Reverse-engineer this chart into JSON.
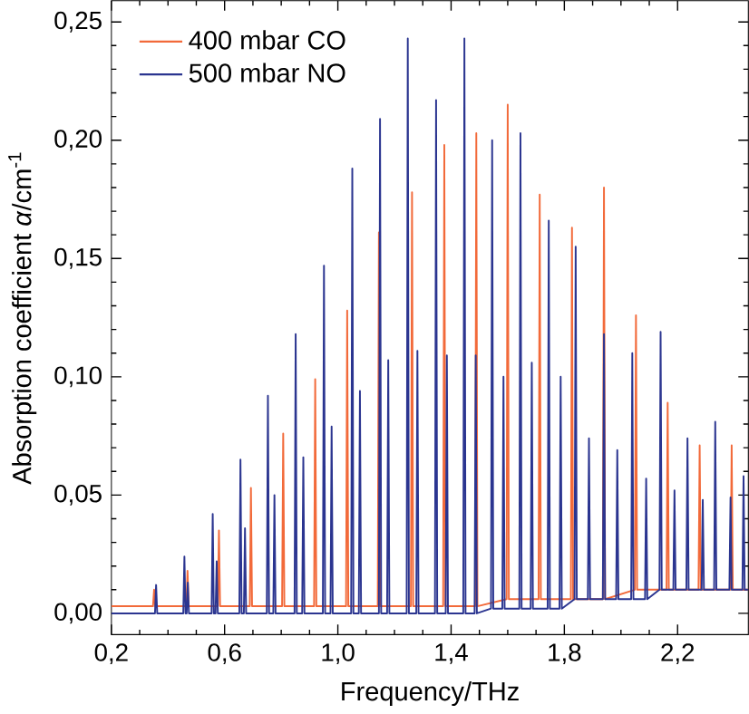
{
  "chart_data": {
    "type": "line",
    "xlabel": "Frequency/THz",
    "ylabel": "Absorption coefficient  *α*/cm$^{-1}$",
    "xlim": [
      0.2,
      2.45
    ],
    "ylim": [
      -0.009,
      0.259
    ],
    "xticks": [
      {
        "value": 0.2,
        "label": "0,2"
      },
      {
        "value": 0.6,
        "label": "0,6"
      },
      {
        "value": 1.0,
        "label": "1,0"
      },
      {
        "value": 1.4,
        "label": "1,4"
      },
      {
        "value": 1.8,
        "label": "1,8"
      },
      {
        "value": 2.2,
        "label": "2,2"
      }
    ],
    "yticks": [
      {
        "value": 0,
        "label": "0,00"
      },
      {
        "value": 0.05,
        "label": "0,05"
      },
      {
        "value": 0.1,
        "label": "0,10"
      },
      {
        "value": 0.15,
        "label": "0,15"
      },
      {
        "value": 0.2,
        "label": "0,20"
      },
      {
        "value": 0.25,
        "label": "0,25"
      }
    ],
    "grid": false,
    "legend": "top left",
    "marker": "none",
    "line_style": "solid",
    "series": [
      {
        "name": "400 mbar CO",
        "color": "#f26a3a",
        "x": [
          0.2,
          0.347,
          0.351,
          0.355,
          0.465,
          0.469,
          0.473,
          0.576,
          0.58,
          0.584,
          0.689,
          0.693,
          0.697,
          0.803,
          0.807,
          0.811,
          0.916,
          0.92,
          0.924,
          1.029,
          1.033,
          1.037,
          1.141,
          1.145,
          1.149,
          1.258,
          1.262,
          1.266,
          1.372,
          1.376,
          1.38,
          1.485,
          1.489,
          1.493,
          1.596,
          1.6,
          1.604,
          1.709,
          1.713,
          1.717,
          1.823,
          1.827,
          1.831,
          1.936,
          1.94,
          1.944,
          2.049,
          2.053,
          2.057,
          2.161,
          2.165,
          2.169,
          2.274,
          2.278,
          2.282,
          2.387,
          2.391,
          2.395,
          2.45
        ],
        "values": [
          0.003,
          0.003,
          0.01,
          0.003,
          0.003,
          0.018,
          0.003,
          0.003,
          0.035,
          0.003,
          0.003,
          0.053,
          0.003,
          0.003,
          0.076,
          0.003,
          0.003,
          0.099,
          0.003,
          0.003,
          0.128,
          0.003,
          0.003,
          0.161,
          0.003,
          0.003,
          0.178,
          0.003,
          0.003,
          0.198,
          0.003,
          0.003,
          0.203,
          0.003,
          0.006,
          0.215,
          0.006,
          0.006,
          0.177,
          0.006,
          0.006,
          0.163,
          0.006,
          0.006,
          0.18,
          0.006,
          0.01,
          0.126,
          0.01,
          0.01,
          0.089,
          0.01,
          0.01,
          0.071,
          0.01,
          0.01,
          0.071,
          0.01,
          0.01
        ]
      },
      {
        "name": "500 mbar NO",
        "color": "#2b3590",
        "x": [
          0.2,
          0.354,
          0.358,
          0.362,
          0.454,
          0.458,
          0.462,
          0.466,
          0.47,
          0.474,
          0.554,
          0.558,
          0.562,
          0.568,
          0.572,
          0.576,
          0.652,
          0.656,
          0.66,
          0.668,
          0.672,
          0.676,
          0.749,
          0.753,
          0.757,
          0.772,
          0.776,
          0.78,
          0.847,
          0.851,
          0.855,
          0.874,
          0.878,
          0.882,
          0.947,
          0.951,
          0.955,
          0.974,
          0.978,
          0.982,
          1.047,
          1.051,
          1.055,
          1.074,
          1.078,
          1.082,
          1.145,
          1.149,
          1.153,
          1.174,
          1.178,
          1.182,
          1.243,
          1.247,
          1.251,
          1.277,
          1.281,
          1.285,
          1.343,
          1.347,
          1.351,
          1.381,
          1.385,
          1.389,
          1.443,
          1.447,
          1.451,
          1.483,
          1.487,
          1.491,
          1.541,
          1.545,
          1.549,
          1.581,
          1.585,
          1.589,
          1.641,
          1.645,
          1.649,
          1.681,
          1.685,
          1.689,
          1.741,
          1.745,
          1.749,
          1.783,
          1.787,
          1.791,
          1.836,
          1.84,
          1.844,
          1.883,
          1.887,
          1.891,
          1.936,
          1.94,
          1.944,
          1.983,
          1.987,
          1.991,
          2.036,
          2.04,
          2.044,
          2.085,
          2.089,
          2.093,
          2.136,
          2.14,
          2.144,
          2.185,
          2.189,
          2.193,
          2.231,
          2.235,
          2.239,
          2.285,
          2.289,
          2.293,
          2.329,
          2.333,
          2.337,
          2.383,
          2.387,
          2.391,
          2.429,
          2.433,
          2.437,
          2.45
        ],
        "values": [
          0,
          0,
          0.012,
          0,
          0,
          0.024,
          0,
          0,
          0.013,
          0,
          0,
          0.042,
          0,
          0,
          0.022,
          0,
          0,
          0.065,
          0,
          0,
          0.036,
          0,
          0,
          0.092,
          0,
          0,
          0.05,
          0,
          0,
          0.118,
          0,
          0,
          0.066,
          0,
          0,
          0.147,
          0,
          0,
          0.079,
          0,
          0,
          0.188,
          0,
          0,
          0.094,
          0,
          0,
          0.209,
          0,
          0,
          0.107,
          0,
          0,
          0.243,
          0,
          0,
          0.111,
          0,
          0,
          0.217,
          0,
          0,
          0.109,
          0,
          0,
          0.243,
          0,
          0,
          0.109,
          0,
          0.002,
          0.2,
          0.002,
          0.002,
          0.1,
          0.002,
          0.002,
          0.203,
          0.002,
          0.002,
          0.106,
          0.002,
          0.002,
          0.166,
          0.002,
          0.002,
          0.1,
          0.002,
          0.006,
          0.155,
          0.006,
          0.006,
          0.074,
          0.006,
          0.006,
          0.118,
          0.006,
          0.006,
          0.069,
          0.006,
          0.006,
          0.11,
          0.006,
          0.006,
          0.057,
          0.006,
          0.01,
          0.119,
          0.01,
          0.01,
          0.052,
          0.01,
          0.01,
          0.074,
          0.01,
          0.01,
          0.048,
          0.01,
          0.01,
          0.081,
          0.01,
          0.01,
          0.049,
          0.01,
          0.01,
          0.058,
          0.01,
          0.01
        ]
      }
    ]
  }
}
